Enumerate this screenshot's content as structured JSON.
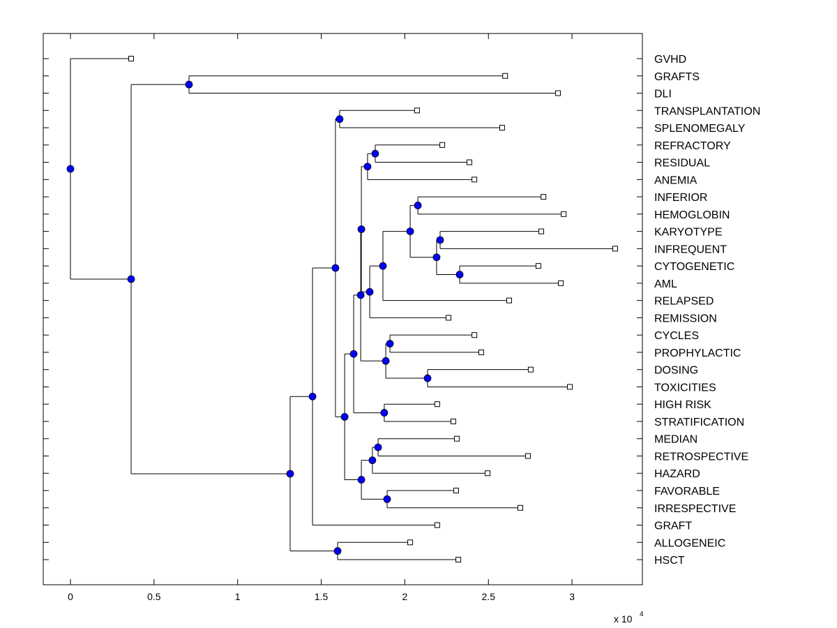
{
  "chart_data": {
    "type": "dendrogram",
    "orientation": "left-to-right",
    "xlim": [
      -0.16,
      3.42
    ],
    "xticks": [
      0,
      0.5,
      1,
      1.5,
      2,
      2.5,
      3
    ],
    "xtick_labels": [
      "0",
      "0.5",
      "1",
      "1.5",
      "2",
      "2.5",
      "3"
    ],
    "x_multiplier_label": "x 10",
    "x_multiplier_exp": "4",
    "grid": false,
    "colors": {
      "node": "#0000ff",
      "leaf_fill": "#ffffff",
      "line": "#000000"
    },
    "tree": {
      "x": 0,
      "children": [
        {
          "leaf": "GVHD",
          "x": 0.363
        },
        {
          "x": 0.363,
          "children": [
            {
              "x": 0.709,
              "children": [
                {
                  "leaf": "GRAFTS",
                  "x": 2.6
                },
                {
                  "leaf": "DLI",
                  "x": 2.916
                }
              ]
            },
            {
              "x": 1.314,
              "children": [
                {
                  "x": 1.448,
                  "children": [
                    {
                      "x": 1.585,
                      "children": [
                        {
                          "x": 1.61,
                          "children": [
                            {
                              "leaf": "TRANSPLANTATION",
                              "x": 2.073
                            },
                            {
                              "leaf": "SPLENOMEGALY",
                              "x": 2.582
                            }
                          ]
                        },
                        {
                          "x": 1.64,
                          "children": [
                            {
                              "x": 1.694,
                              "children": [
                                {
                                  "x": 1.736,
                                  "children": [
                                    {
                                      "x": 1.74,
                                      "children": [
                                        {
                                          "x": 1.777,
                                          "children": [
                                            {
                                              "x": 1.823,
                                              "children": [
                                                {
                                                  "leaf": "REFRACTORY",
                                                  "x": 2.224
                                                },
                                                {
                                                  "leaf": "RESIDUAL",
                                                  "x": 2.386
                                                }
                                              ]
                                            },
                                            {
                                              "leaf": "ANEMIA",
                                              "x": 2.416
                                            }
                                          ]
                                        },
                                        {
                                          "x": 1.79,
                                          "children": [
                                            {
                                              "x": 1.869,
                                              "children": [
                                                {
                                                  "x": 2.032,
                                                  "children": [
                                                    {
                                                      "x": 2.078,
                                                      "children": [
                                                        {
                                                          "leaf": "INFERIOR",
                                                          "x": 2.829
                                                        },
                                                        {
                                                          "leaf": "HEMOGLOBIN",
                                                          "x": 2.95
                                                        }
                                                      ]
                                                    },
                                                    {
                                                      "x": 2.19,
                                                      "children": [
                                                        {
                                                          "x": 2.211,
                                                          "children": [
                                                            {
                                                              "leaf": "KARYOTYPE",
                                                              "x": 2.816
                                                            },
                                                            {
                                                              "leaf": "INFREQUENT",
                                                              "x": 3.258
                                                            }
                                                          ]
                                                        },
                                                        {
                                                          "x": 2.328,
                                                          "children": [
                                                            {
                                                              "leaf": "CYTOGENETIC",
                                                              "x": 2.799
                                                            },
                                                            {
                                                              "leaf": "AML",
                                                              "x": 2.933
                                                            }
                                                          ]
                                                        }
                                                      ]
                                                    }
                                                  ]
                                                },
                                                {
                                                  "leaf": "RELAPSED",
                                                  "x": 2.624
                                                }
                                              ]
                                            },
                                            {
                                              "leaf": "REMISSION",
                                              "x": 2.261
                                            }
                                          ]
                                        }
                                      ]
                                    },
                                    {
                                      "x": 1.886,
                                      "children": [
                                        {
                                          "x": 1.911,
                                          "children": [
                                            {
                                              "leaf": "CYCLES",
                                              "x": 2.416
                                            },
                                            {
                                              "leaf": "PROPHYLACTIC",
                                              "x": 2.457
                                            }
                                          ]
                                        },
                                        {
                                          "x": 2.136,
                                          "children": [
                                            {
                                              "leaf": "DOSING",
                                              "x": 2.753
                                            },
                                            {
                                              "leaf": "TOXICITIES",
                                              "x": 2.987
                                            }
                                          ]
                                        }
                                      ]
                                    }
                                  ]
                                },
                                {
                                  "x": 1.877,
                                  "children": [
                                    {
                                      "leaf": "HIGH RISK",
                                      "x": 2.194
                                    },
                                    {
                                      "leaf": "STRATIFICATION",
                                      "x": 2.29
                                    }
                                  ]
                                }
                              ]
                            },
                            {
                              "x": 1.74,
                              "children": [
                                {
                                  "x": 1.806,
                                  "children": [
                                    {
                                      "x": 1.84,
                                      "children": [
                                        {
                                          "leaf": "MEDIAN",
                                          "x": 2.311
                                        },
                                        {
                                          "leaf": "RETROSPECTIVE",
                                          "x": 2.737
                                        }
                                      ]
                                    },
                                    {
                                      "leaf": "HAZARD",
                                      "x": 2.495
                                    }
                                  ]
                                },
                                {
                                  "x": 1.894,
                                  "children": [
                                    {
                                      "leaf": "FAVORABLE",
                                      "x": 2.307
                                    },
                                    {
                                      "leaf": "IRRESPECTIVE",
                                      "x": 2.691
                                    }
                                  ]
                                }
                              ]
                            }
                          ]
                        }
                      ]
                    },
                    {
                      "leaf": "GRAFT",
                      "x": 2.194
                    }
                  ]
                },
                {
                  "x": 1.598,
                  "children": [
                    {
                      "leaf": "ALLOGENEIC",
                      "x": 2.032
                    },
                    {
                      "leaf": "HSCT",
                      "x": 2.32
                    }
                  ]
                }
              ]
            }
          ]
        }
      ]
    }
  }
}
